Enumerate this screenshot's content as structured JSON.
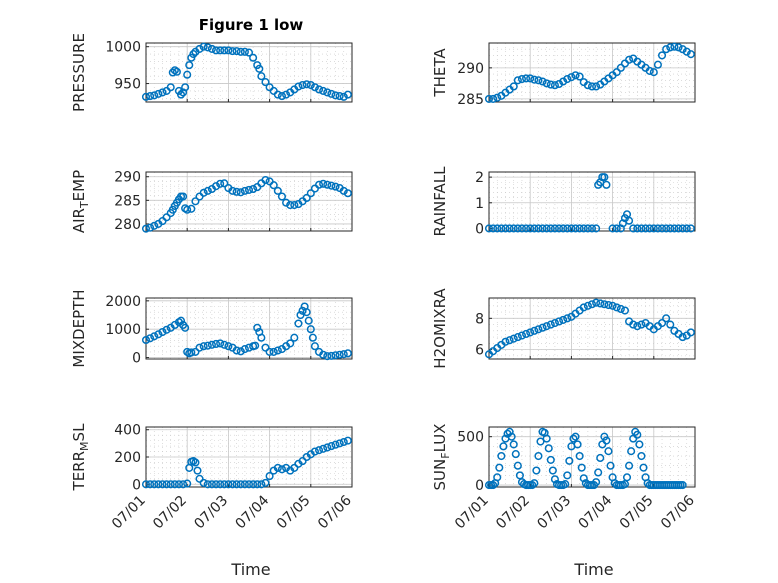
{
  "figure": {
    "title": "Figure 1 low",
    "xlabel": "Time"
  },
  "x_ticks": [
    "07/01",
    "07/02",
    "07/03",
    "07/04",
    "07/05",
    "07/06"
  ],
  "style": {
    "marker_color": "#0072BD",
    "axis_color": "#262626",
    "grid_color": "#c8c8c8",
    "background": "#ffffff"
  },
  "chart_data": [
    {
      "type": "scatter",
      "ylabel": "PRESSURE",
      "ylabel_sub": "",
      "ylim": [
        925,
        1005
      ],
      "yticks": [
        950,
        1000
      ],
      "grid": true,
      "xlim": [
        0,
        5
      ],
      "x": [
        0,
        0.1,
        0.2,
        0.3,
        0.4,
        0.5,
        0.6,
        0.65,
        0.7,
        0.75,
        0.8,
        0.85,
        0.9,
        0.95,
        1.0,
        1.05,
        1.1,
        1.15,
        1.2,
        1.3,
        1.4,
        1.5,
        1.6,
        1.7,
        1.8,
        1.9,
        2.0,
        2.1,
        2.2,
        2.3,
        2.4,
        2.5,
        2.6,
        2.7,
        2.75,
        2.8,
        2.9,
        3.0,
        3.1,
        3.2,
        3.3,
        3.4,
        3.5,
        3.6,
        3.7,
        3.8,
        3.9,
        4.0,
        4.1,
        4.2,
        4.3,
        4.4,
        4.5,
        4.6,
        4.7,
        4.8,
        4.9
      ],
      "y": [
        932,
        933,
        934,
        936,
        938,
        940,
        945,
        965,
        968,
        966,
        940,
        935,
        938,
        945,
        962,
        975,
        985,
        990,
        993,
        997,
        1000,
        999,
        997,
        995,
        995,
        995,
        995,
        994,
        994,
        993,
        993,
        992,
        985,
        975,
        970,
        960,
        952,
        945,
        940,
        935,
        933,
        935,
        938,
        942,
        946,
        948,
        949,
        948,
        945,
        942,
        940,
        938,
        936,
        934,
        933,
        932,
        935
      ]
    },
    {
      "type": "scatter",
      "ylabel": "THETA",
      "ylabel_sub": "",
      "ylim": [
        284.5,
        294
      ],
      "yticks": [
        285,
        290
      ],
      "grid": true,
      "xlim": [
        0,
        5
      ],
      "x": [
        0,
        0.1,
        0.2,
        0.3,
        0.4,
        0.5,
        0.6,
        0.7,
        0.8,
        0.9,
        1.0,
        1.1,
        1.2,
        1.3,
        1.4,
        1.5,
        1.6,
        1.7,
        1.8,
        1.9,
        2.0,
        2.1,
        2.2,
        2.3,
        2.4,
        2.5,
        2.6,
        2.7,
        2.8,
        2.9,
        3.0,
        3.1,
        3.2,
        3.3,
        3.4,
        3.5,
        3.6,
        3.7,
        3.8,
        3.9,
        4.0,
        4.1,
        4.2,
        4.3,
        4.4,
        4.5,
        4.6,
        4.7,
        4.8,
        4.9
      ],
      "y": [
        285,
        285,
        285.2,
        285.5,
        286,
        286.5,
        287,
        288,
        288.2,
        288.3,
        288.3,
        288.1,
        288,
        287.8,
        287.5,
        287.3,
        287.2,
        287.4,
        287.8,
        288.2,
        288.5,
        288.8,
        288.6,
        287.7,
        287.2,
        287,
        287,
        287.3,
        287.8,
        288.3,
        288.8,
        289.3,
        290,
        290.7,
        291.3,
        291.5,
        291,
        290.5,
        290,
        289.5,
        289.3,
        290.5,
        292,
        293,
        293.3,
        293.4,
        293.3,
        293,
        292.6,
        292.2
      ]
    },
    {
      "type": "scatter",
      "ylabel": "AIR",
      "ylabel_sub": "T",
      "ylabel_suffix": "EMP",
      "ylim": [
        278.5,
        291
      ],
      "yticks": [
        280,
        285,
        290
      ],
      "grid": true,
      "xlim": [
        0,
        5
      ],
      "x": [
        0,
        0.1,
        0.2,
        0.3,
        0.4,
        0.5,
        0.6,
        0.65,
        0.7,
        0.75,
        0.8,
        0.85,
        0.9,
        0.95,
        1.0,
        1.1,
        1.2,
        1.3,
        1.4,
        1.5,
        1.6,
        1.7,
        1.8,
        1.9,
        2.0,
        2.1,
        2.2,
        2.3,
        2.4,
        2.5,
        2.6,
        2.7,
        2.8,
        2.9,
        3.0,
        3.1,
        3.2,
        3.3,
        3.4,
        3.5,
        3.6,
        3.7,
        3.8,
        3.9,
        4.0,
        4.1,
        4.2,
        4.3,
        4.4,
        4.5,
        4.6,
        4.7,
        4.8,
        4.9
      ],
      "y": [
        279,
        279.2,
        279.6,
        280,
        280.6,
        281.4,
        282.3,
        283,
        283.8,
        284.5,
        285.2,
        285.8,
        285.8,
        283.3,
        283,
        283.2,
        284.8,
        285.8,
        286.6,
        287,
        287.4,
        288,
        288.5,
        288.6,
        287.6,
        287,
        286.8,
        286.7,
        287,
        287.2,
        287.4,
        287.8,
        288.6,
        289.3,
        289,
        288.2,
        287,
        285.8,
        284.5,
        284,
        284,
        284.2,
        284.8,
        285.5,
        286.5,
        287.5,
        288.3,
        288.5,
        288.3,
        288.1,
        287.9,
        287.6,
        287,
        286.5
      ]
    },
    {
      "type": "scatter",
      "ylabel": "RAINFALL",
      "ylabel_sub": "",
      "ylim": [
        -0.1,
        2.2
      ],
      "yticks": [
        0,
        1,
        2
      ],
      "grid": true,
      "xlim": [
        0,
        5
      ],
      "x": [
        0,
        0.1,
        0.2,
        0.3,
        0.4,
        0.5,
        0.6,
        0.7,
        0.8,
        0.9,
        1.0,
        1.1,
        1.2,
        1.3,
        1.4,
        1.5,
        1.6,
        1.7,
        1.8,
        1.9,
        2.0,
        2.1,
        2.2,
        2.3,
        2.4,
        2.5,
        2.6,
        2.65,
        2.7,
        2.75,
        2.8,
        2.85,
        3.0,
        3.1,
        3.2,
        3.25,
        3.3,
        3.35,
        3.4,
        3.5,
        3.6,
        3.7,
        3.8,
        3.9,
        4.0,
        4.1,
        4.2,
        4.3,
        4.4,
        4.5,
        4.6,
        4.7,
        4.8,
        4.9
      ],
      "y": [
        0,
        0,
        0,
        0,
        0,
        0,
        0,
        0,
        0,
        0,
        0,
        0,
        0,
        0,
        0,
        0,
        0,
        0,
        0,
        0,
        0,
        0,
        0,
        0,
        0,
        0,
        0,
        1.7,
        1.8,
        2.0,
        2.0,
        1.7,
        0,
        0,
        0,
        0.2,
        0.4,
        0.55,
        0.3,
        0,
        0,
        0,
        0,
        0,
        0,
        0,
        0,
        0,
        0,
        0,
        0,
        0,
        0,
        0
      ]
    },
    {
      "type": "scatter",
      "ylabel": "MIXDEPTH",
      "ylabel_sub": "",
      "ylim": [
        -50,
        2100
      ],
      "yticks": [
        0,
        1000,
        2000
      ],
      "grid": true,
      "xlim": [
        0,
        5
      ],
      "x": [
        0,
        0.1,
        0.2,
        0.3,
        0.4,
        0.5,
        0.6,
        0.7,
        0.8,
        0.85,
        0.9,
        0.95,
        1.0,
        1.05,
        1.1,
        1.2,
        1.3,
        1.4,
        1.5,
        1.6,
        1.7,
        1.8,
        1.9,
        2.0,
        2.1,
        2.2,
        2.3,
        2.4,
        2.5,
        2.6,
        2.65,
        2.7,
        2.75,
        2.8,
        2.9,
        3.0,
        3.1,
        3.2,
        3.3,
        3.4,
        3.5,
        3.6,
        3.7,
        3.75,
        3.8,
        3.85,
        3.9,
        3.95,
        4.0,
        4.05,
        4.1,
        4.2,
        4.3,
        4.4,
        4.5,
        4.6,
        4.7,
        4.8,
        4.9
      ],
      "y": [
        620,
        680,
        750,
        820,
        900,
        980,
        1050,
        1150,
        1250,
        1300,
        1150,
        1050,
        200,
        150,
        180,
        200,
        350,
        400,
        420,
        450,
        480,
        500,
        450,
        400,
        350,
        250,
        220,
        300,
        350,
        400,
        420,
        1050,
        900,
        700,
        350,
        200,
        200,
        250,
        300,
        400,
        500,
        700,
        1200,
        1500,
        1650,
        1800,
        1600,
        1300,
        1000,
        700,
        400,
        200,
        100,
        50,
        60,
        80,
        100,
        120,
        150
      ]
    },
    {
      "type": "scatter",
      "ylabel": "H2OMIXRA",
      "ylabel_sub": "",
      "ylim": [
        5.4,
        9.3
      ],
      "yticks": [
        6,
        8
      ],
      "grid": true,
      "xlim": [
        0,
        5
      ],
      "x": [
        0,
        0.1,
        0.2,
        0.3,
        0.4,
        0.5,
        0.6,
        0.7,
        0.8,
        0.9,
        1.0,
        1.1,
        1.2,
        1.3,
        1.4,
        1.5,
        1.6,
        1.7,
        1.8,
        1.9,
        2.0,
        2.1,
        2.2,
        2.3,
        2.4,
        2.5,
        2.6,
        2.7,
        2.8,
        2.9,
        3.0,
        3.1,
        3.2,
        3.3,
        3.4,
        3.5,
        3.6,
        3.7,
        3.8,
        3.9,
        4.0,
        4.1,
        4.2,
        4.3,
        4.4,
        4.5,
        4.6,
        4.7,
        4.8,
        4.9
      ],
      "y": [
        5.7,
        5.9,
        6.1,
        6.3,
        6.5,
        6.6,
        6.7,
        6.8,
        6.9,
        7.0,
        7.1,
        7.2,
        7.3,
        7.4,
        7.5,
        7.6,
        7.7,
        7.8,
        7.9,
        8.0,
        8.1,
        8.3,
        8.5,
        8.7,
        8.8,
        8.9,
        9.0,
        8.95,
        8.9,
        8.85,
        8.8,
        8.7,
        8.6,
        8.5,
        7.8,
        7.6,
        7.5,
        7.6,
        7.7,
        7.5,
        7.3,
        7.5,
        7.7,
        8.0,
        7.6,
        7.2,
        7.0,
        6.8,
        6.9,
        7.1
      ]
    },
    {
      "type": "scatter",
      "ylabel": "TERR",
      "ylabel_sub": "M",
      "ylabel_suffix": "SL",
      "ylim": [
        -20,
        420
      ],
      "yticks": [
        0,
        200,
        400
      ],
      "grid": true,
      "xlim": [
        0,
        5
      ],
      "x": [
        0,
        0.1,
        0.2,
        0.3,
        0.4,
        0.5,
        0.6,
        0.7,
        0.8,
        0.9,
        1.0,
        1.05,
        1.1,
        1.15,
        1.2,
        1.25,
        1.3,
        1.4,
        1.5,
        1.6,
        1.7,
        1.8,
        1.9,
        2.0,
        2.1,
        2.2,
        2.3,
        2.4,
        2.5,
        2.6,
        2.7,
        2.8,
        2.9,
        3.0,
        3.1,
        3.2,
        3.3,
        3.4,
        3.5,
        3.6,
        3.7,
        3.8,
        3.9,
        4.0,
        4.1,
        4.2,
        4.3,
        4.4,
        4.5,
        4.6,
        4.7,
        4.8,
        4.9
      ],
      "y": [
        0,
        0,
        0,
        0,
        0,
        0,
        0,
        0,
        0,
        0,
        5,
        120,
        165,
        170,
        160,
        100,
        40,
        10,
        0,
        0,
        0,
        0,
        0,
        0,
        0,
        0,
        0,
        0,
        0,
        0,
        0,
        0,
        10,
        60,
        100,
        120,
        110,
        120,
        100,
        120,
        150,
        170,
        200,
        220,
        240,
        250,
        260,
        270,
        280,
        290,
        300,
        310,
        320
      ]
    },
    {
      "type": "scatter",
      "ylabel": "SUN",
      "ylabel_sub": "F",
      "ylabel_suffix": "LUX",
      "ylim": [
        -20,
        600
      ],
      "yticks": [
        0,
        500
      ],
      "grid": true,
      "xlim": [
        0,
        5
      ],
      "x": [
        0,
        0.05,
        0.1,
        0.15,
        0.2,
        0.25,
        0.3,
        0.35,
        0.4,
        0.45,
        0.5,
        0.55,
        0.6,
        0.65,
        0.7,
        0.75,
        0.8,
        0.85,
        0.9,
        0.95,
        1.0,
        1.05,
        1.1,
        1.15,
        1.2,
        1.25,
        1.3,
        1.35,
        1.4,
        1.45,
        1.5,
        1.55,
        1.6,
        1.65,
        1.7,
        1.75,
        1.8,
        1.85,
        1.9,
        1.95,
        2.0,
        2.05,
        2.1,
        2.15,
        2.2,
        2.25,
        2.3,
        2.35,
        2.4,
        2.45,
        2.5,
        2.55,
        2.6,
        2.65,
        2.7,
        2.75,
        2.8,
        2.85,
        2.9,
        2.95,
        3.0,
        3.05,
        3.1,
        3.15,
        3.2,
        3.25,
        3.3,
        3.35,
        3.4,
        3.45,
        3.5,
        3.55,
        3.6,
        3.65,
        3.7,
        3.75,
        3.8,
        3.85,
        3.9,
        3.95,
        4.0,
        4.05,
        4.1,
        4.15,
        4.2,
        4.25,
        4.3,
        4.35,
        4.4,
        4.45,
        4.5,
        4.55,
        4.6,
        4.65,
        4.7
      ],
      "y": [
        0,
        0,
        0,
        20,
        80,
        180,
        300,
        400,
        480,
        530,
        550,
        500,
        420,
        320,
        200,
        100,
        30,
        10,
        0,
        0,
        0,
        0,
        20,
        150,
        300,
        450,
        550,
        540,
        480,
        380,
        260,
        150,
        60,
        10,
        0,
        0,
        0,
        10,
        100,
        250,
        400,
        480,
        500,
        420,
        300,
        180,
        70,
        20,
        0,
        0,
        0,
        0,
        30,
        130,
        280,
        420,
        500,
        460,
        350,
        200,
        80,
        20,
        0,
        0,
        0,
        0,
        10,
        80,
        200,
        350,
        480,
        550,
        520,
        420,
        300,
        180,
        80,
        20,
        0,
        0,
        0,
        0,
        0,
        0,
        0,
        0,
        0,
        0,
        0,
        0,
        0,
        0,
        0,
        0,
        0
      ]
    }
  ]
}
